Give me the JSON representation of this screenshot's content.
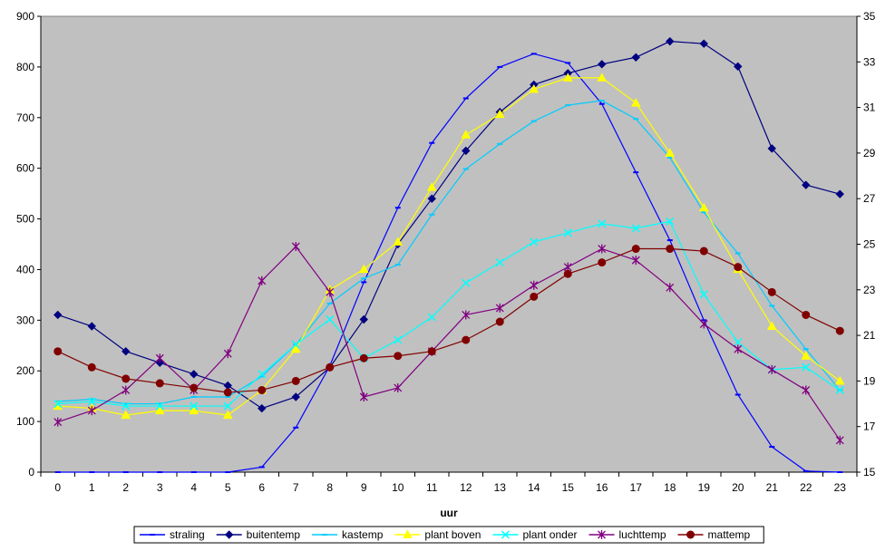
{
  "chart_data": {
    "type": "line",
    "xlabel": "uur",
    "categories": [
      "0",
      "1",
      "2",
      "3",
      "4",
      "5",
      "6",
      "7",
      "8",
      "9",
      "10",
      "11",
      "12",
      "13",
      "14",
      "15",
      "16",
      "17",
      "18",
      "19",
      "20",
      "21",
      "22",
      "23"
    ],
    "y_left": {
      "range": [
        0,
        900
      ],
      "ticks": [
        "0",
        "100",
        "200",
        "300",
        "400",
        "500",
        "600",
        "700",
        "800",
        "900"
      ]
    },
    "y_right": {
      "range": [
        15,
        35
      ],
      "ticks": [
        "15",
        "17",
        "19",
        "21",
        "23",
        "25",
        "27",
        "29",
        "31",
        "33",
        "35"
      ]
    },
    "grid": false,
    "legend_position": "bottom",
    "series": [
      {
        "name": "straling",
        "axis": "left",
        "color": "#0000ff",
        "marker": "dash",
        "values": [
          0,
          0,
          0,
          0,
          0,
          0,
          10,
          88,
          210,
          375,
          522,
          650,
          738,
          800,
          826,
          808,
          727,
          592,
          458,
          300,
          153,
          50,
          2,
          0
        ]
      },
      {
        "name": "buitentemp",
        "axis": "right",
        "color": "#000080",
        "marker": "diamond",
        "values": [
          21.9,
          21.4,
          20.3,
          19.8,
          19.3,
          18.8,
          17.8,
          18.3,
          19.6,
          21.7,
          25.0,
          27.0,
          29.1,
          30.8,
          32.0,
          32.5,
          32.9,
          33.2,
          33.9,
          33.8,
          32.8,
          29.2,
          27.6,
          27.2
        ]
      },
      {
        "name": "kastemp",
        "axis": "right",
        "color": "#00ccff",
        "marker": "dash",
        "values": [
          18.1,
          18.2,
          18.0,
          18.0,
          18.3,
          18.3,
          19.2,
          20.6,
          22.4,
          23.5,
          24.1,
          26.3,
          28.3,
          29.4,
          30.4,
          31.1,
          31.3,
          30.5,
          28.8,
          26.4,
          24.6,
          22.3,
          20.4,
          18.6
        ]
      },
      {
        "name": "plant boven",
        "axis": "right",
        "color": "#ffff00",
        "marker": "triangle",
        "values": [
          17.9,
          17.8,
          17.5,
          17.7,
          17.7,
          17.5,
          18.6,
          20.4,
          23.0,
          23.9,
          25.1,
          27.5,
          29.8,
          30.7,
          31.8,
          32.3,
          32.3,
          31.2,
          29.0,
          26.6,
          23.9,
          21.4,
          20.1,
          19.0
        ]
      },
      {
        "name": "plant onder",
        "axis": "right",
        "color": "#00ffff",
        "marker": "x",
        "values": [
          18.0,
          18.1,
          17.9,
          17.9,
          17.9,
          17.9,
          19.3,
          20.6,
          21.7,
          20.0,
          20.8,
          21.8,
          23.3,
          24.2,
          25.1,
          25.5,
          25.9,
          25.7,
          26.0,
          22.8,
          20.7,
          19.5,
          19.6,
          18.6
        ]
      },
      {
        "name": "luchttemp",
        "axis": "right",
        "color": "#800080",
        "marker": "star",
        "values": [
          17.2,
          17.7,
          18.6,
          20.0,
          18.6,
          20.2,
          23.4,
          24.9,
          22.9,
          18.3,
          18.7,
          20.3,
          21.9,
          22.2,
          23.2,
          24.0,
          24.8,
          24.3,
          23.1,
          21.5,
          20.4,
          19.5,
          18.6,
          16.4
        ]
      },
      {
        "name": "mattemp",
        "axis": "right",
        "color": "#800000",
        "marker": "circle",
        "values": [
          20.3,
          19.6,
          19.1,
          18.9,
          18.7,
          18.5,
          18.6,
          19.0,
          19.6,
          20.0,
          20.1,
          20.3,
          20.8,
          21.6,
          22.7,
          23.7,
          24.2,
          24.8,
          24.8,
          24.7,
          24.0,
          22.9,
          21.9,
          21.2
        ]
      }
    ]
  }
}
